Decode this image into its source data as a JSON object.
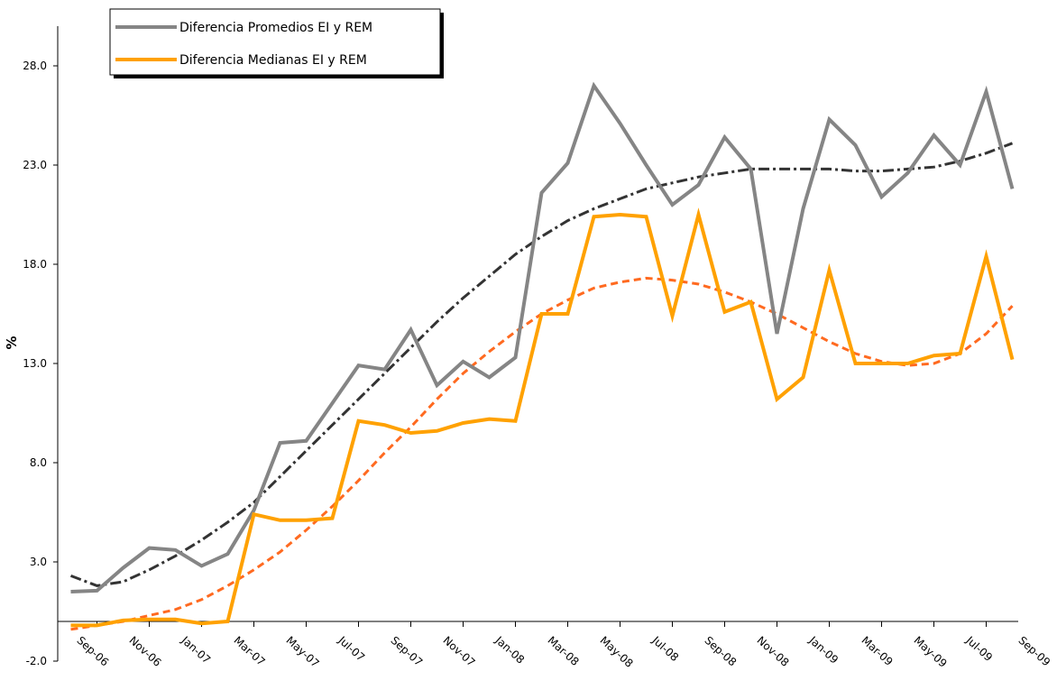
{
  "chart_data": {
    "type": "line",
    "ylabel": "%",
    "categories": [
      "Sep-06",
      null,
      "Nov-06",
      null,
      "Jan-07",
      null,
      "Mar-07",
      null,
      "May-07",
      null,
      "Jul-07",
      null,
      "Sep-07",
      null,
      "Nov-07",
      null,
      "Jan-08",
      null,
      "Mar-08",
      null,
      "May-08",
      null,
      "Jul-08",
      null,
      "Sep-08",
      null,
      "Nov-08",
      null,
      "Jan-09",
      null,
      "Mar-09",
      null,
      "May-09",
      null,
      "Jul-09",
      null,
      "Sep-09"
    ],
    "series": [
      {
        "name": "Diferencia Promedios EI y REM",
        "color": "#858585",
        "values": [
          1.5,
          1.55,
          2.7,
          3.7,
          3.6,
          2.8,
          3.4,
          5.6,
          9.0,
          9.1,
          11.0,
          12.9,
          12.7,
          14.7,
          11.9,
          13.1,
          12.3,
          13.3,
          21.6,
          23.1,
          27.0,
          25.1,
          23.0,
          21.0,
          22.0,
          24.4,
          22.8,
          14.5,
          20.8,
          25.3,
          24.0,
          21.4,
          22.6,
          24.5,
          23.0,
          26.7,
          21.8
        ],
        "trend_color": "#333333",
        "trend_values": [
          2.3,
          1.8,
          2.0,
          2.6,
          3.3,
          4.1,
          5.0,
          6.0,
          7.3,
          8.6,
          9.9,
          11.2,
          12.5,
          13.8,
          15.1,
          16.3,
          17.4,
          18.5,
          19.4,
          20.2,
          20.8,
          21.3,
          21.8,
          22.1,
          22.4,
          22.6,
          22.8,
          22.8,
          22.8,
          22.8,
          22.7,
          22.7,
          22.8,
          22.9,
          23.2,
          23.6,
          24.1
        ]
      },
      {
        "name": "Diferencia Medianas EI y REM",
        "color": "#ffa100",
        "values": [
          -0.2,
          -0.2,
          0.05,
          0.1,
          0.1,
          -0.1,
          0.0,
          5.4,
          5.1,
          5.1,
          5.2,
          10.1,
          9.9,
          9.5,
          9.6,
          10.0,
          10.2,
          10.1,
          15.5,
          15.5,
          20.4,
          20.5,
          20.4,
          15.4,
          20.5,
          15.6,
          16.1,
          11.2,
          12.3,
          17.7,
          13.0,
          13.0,
          13.0,
          13.4,
          13.5,
          18.4,
          13.2
        ],
        "trend_color": "#ff6a20",
        "trend_values": [
          -0.4,
          -0.2,
          0.0,
          0.3,
          0.6,
          1.1,
          1.8,
          2.6,
          3.5,
          4.6,
          5.8,
          7.1,
          8.5,
          9.8,
          11.2,
          12.5,
          13.6,
          14.6,
          15.5,
          16.2,
          16.8,
          17.1,
          17.3,
          17.2,
          17.0,
          16.6,
          16.1,
          15.5,
          14.8,
          14.1,
          13.5,
          13.1,
          12.9,
          13.0,
          13.5,
          14.5,
          15.9
        ]
      }
    ],
    "ylim": [
      -2,
      30
    ],
    "yticks": [
      {
        "value": -2,
        "label": "-2.0"
      },
      {
        "value": 3,
        "label": "3.0"
      },
      {
        "value": 8,
        "label": "8.0"
      },
      {
        "value": 13,
        "label": "13.0"
      },
      {
        "value": 18,
        "label": "18.0"
      },
      {
        "value": 23,
        "label": "23.0"
      },
      {
        "value": 28,
        "label": "28.0"
      }
    ],
    "grid": false
  }
}
